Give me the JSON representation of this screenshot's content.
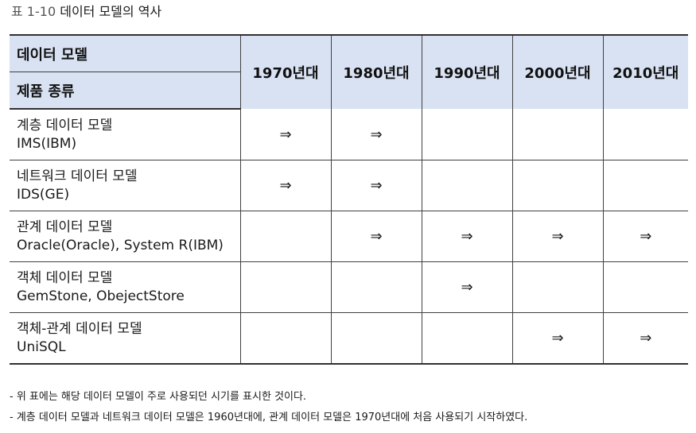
{
  "caption": {
    "label": "표 1-10",
    "text": "데이터 모델의 역사"
  },
  "table": {
    "header_top_left": "데이터 모델",
    "header_bottom_left": "제품 종류",
    "years": [
      "1970년대",
      "1980년대",
      "1990년대",
      "2000년대",
      "2010년대"
    ],
    "rows": [
      {
        "name": "계층 데이터 모델",
        "products": "IMS(IBM)",
        "marks": [
          "⇒",
          "⇒",
          "",
          "",
          ""
        ]
      },
      {
        "name": "네트워크 데이터 모델",
        "products": "IDS(GE)",
        "marks": [
          "⇒",
          "⇒",
          "",
          "",
          ""
        ]
      },
      {
        "name": "관계 데이터 모델",
        "products": "Oracle(Oracle), System R(IBM)",
        "marks": [
          "",
          "⇒",
          "⇒",
          "⇒",
          "⇒"
        ]
      },
      {
        "name": "객체 데이터 모델",
        "products": "GemStone, ObejectStore",
        "marks": [
          "",
          "",
          "⇒",
          "",
          ""
        ]
      },
      {
        "name": "객체-관계 데이터 모델",
        "products": "UniSQL",
        "marks": [
          "",
          "",
          "",
          "⇒",
          "⇒"
        ]
      }
    ]
  },
  "notes": [
    "- 위 표에는 해당 데이터 모델이 주로 사용되던 시기를 표시한 것이다.",
    "- 계층 데이터 모델과 네트워크 데이터 모델은 1960년대에, 관계 데이터 모델은 1970년대에 처음 사용되기 시작하였다."
  ]
}
